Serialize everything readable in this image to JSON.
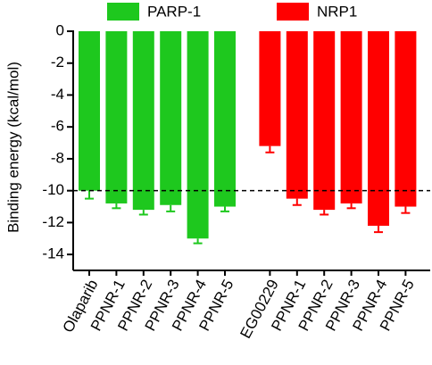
{
  "chart_data": {
    "type": "bar",
    "y_label": "Binding energy (kcal/mol)",
    "categories": [
      "Olaparib",
      "PPNR-1",
      "PPNR-2",
      "PPNR-3",
      "PPNR-4",
      "PPNR-5",
      "EG00229",
      "PPNR-1",
      "PPNR-2",
      "PPNR-3",
      "PPNR-4",
      "PPNR-5"
    ],
    "series": [
      {
        "name": "PARP-1",
        "color": "#1ec81e",
        "values": [
          -10.0,
          -10.8,
          -11.2,
          -10.9,
          -13.0,
          -11.0,
          null,
          null,
          null,
          null,
          null,
          null
        ],
        "errors": [
          0.5,
          0.3,
          0.3,
          0.4,
          0.3,
          0.3,
          null,
          null,
          null,
          null,
          null,
          null
        ]
      },
      {
        "name": "NRP1",
        "color": "#ff0000",
        "values": [
          null,
          null,
          null,
          null,
          null,
          null,
          -7.2,
          -10.5,
          -11.2,
          -10.8,
          -12.2,
          -11.0
        ],
        "errors": [
          null,
          null,
          null,
          null,
          null,
          null,
          0.4,
          0.4,
          0.3,
          0.3,
          0.4,
          0.4
        ]
      }
    ],
    "reference_line": -10,
    "ylim": [
      -15,
      0
    ],
    "yticks": [
      0,
      -2,
      -4,
      -6,
      -8,
      -10,
      -12,
      -14
    ],
    "legend": "top"
  }
}
